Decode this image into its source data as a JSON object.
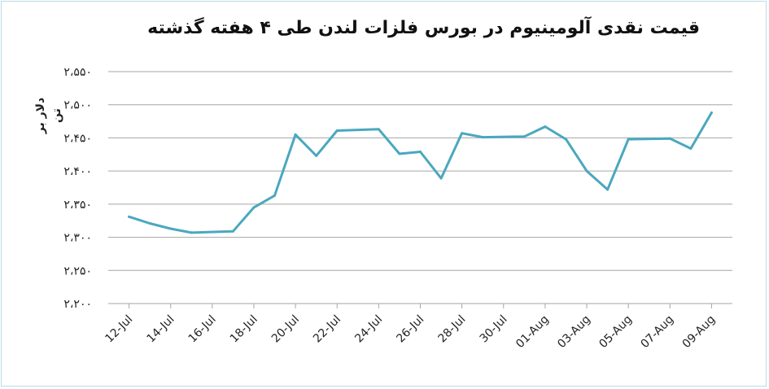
{
  "chart_data": {
    "type": "line",
    "title": "قیمت نقدی آلومینیوم در بورس فلزات لندن طی ۴ هفته گذشته",
    "ylabel": "دلار بر تن",
    "xlabel": "",
    "ylim": [
      2200,
      2550
    ],
    "yticks": [
      2200,
      2250,
      2300,
      2350,
      2400,
      2450,
      2500,
      2550
    ],
    "ytick_labels": [
      "۲،۲۰۰",
      "۲،۲۵۰",
      "۲،۳۰۰",
      "۲،۳۵۰",
      "۲،۴۰۰",
      "۲،۴۵۰",
      "۲،۵۰۰",
      "۲،۵۵۰"
    ],
    "x_tick_labels": [
      "12-Jul",
      "14-Jul",
      "16-Jul",
      "18-Jul",
      "20-Jul",
      "22-Jul",
      "24-Jul",
      "26-Jul",
      "28-Jul",
      "30-Jul",
      "01-Aug",
      "03-Aug",
      "05-Aug",
      "07-Aug",
      "09-Aug"
    ],
    "series": [
      {
        "color": "#4aa8be",
        "x": [
          "2017-07-12",
          "2017-07-13",
          "2017-07-14",
          "2017-07-15",
          "2017-07-17",
          "2017-07-18",
          "2017-07-19",
          "2017-07-20",
          "2017-07-21",
          "2017-07-22",
          "2017-07-24",
          "2017-07-25",
          "2017-07-26",
          "2017-07-27",
          "2017-07-28",
          "2017-07-29",
          "2017-07-31",
          "2017-08-01",
          "2017-08-02",
          "2017-08-03",
          "2017-08-04",
          "2017-08-05",
          "2017-08-07",
          "2017-08-08",
          "2017-08-09"
        ],
        "values": [
          2331,
          2321,
          2313,
          2307,
          2309,
          2345,
          2363,
          2455,
          2423,
          2461,
          2463,
          2426,
          2429,
          2389,
          2457,
          2451,
          2452,
          2467,
          2448,
          2400,
          2372,
          2448,
          2449,
          2434,
          2488
        ]
      }
    ],
    "grid": true,
    "legend": "none"
  }
}
